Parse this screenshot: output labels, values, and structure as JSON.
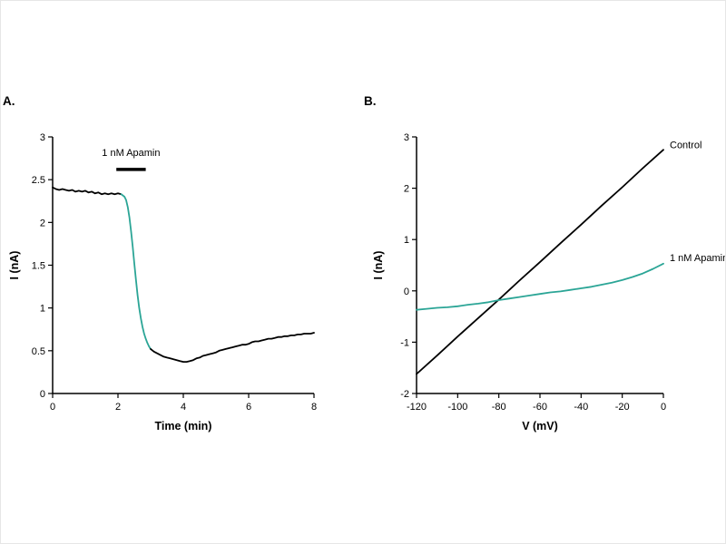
{
  "page": {
    "background": "#ffffff"
  },
  "panels": [
    {
      "label": "A."
    },
    {
      "label": "B."
    }
  ],
  "colors": {
    "trace_black": "#000000",
    "trace_teal": "#2ba596"
  },
  "chart_data": [
    {
      "type": "line",
      "title": "",
      "xlabel": "Time (min)",
      "ylabel": "I (nA)",
      "xlim": [
        0,
        8
      ],
      "ylim": [
        0,
        3
      ],
      "xticks": [
        0,
        2,
        4,
        6,
        8
      ],
      "yticks": [
        0,
        0.5,
        1,
        1.5,
        2,
        2.5,
        3
      ],
      "grid": false,
      "annotation": {
        "text": "1 nM Apamin",
        "bar_x": [
          1.95,
          2.85
        ],
        "bar_y": 2.62,
        "text_y": 2.78
      },
      "series": [
        {
          "name": "baseline-control",
          "color": "#000000",
          "x": [
            0,
            0.1,
            0.2,
            0.3,
            0.4,
            0.5,
            0.6,
            0.7,
            0.8,
            0.9,
            1.0,
            1.1,
            1.2,
            1.3,
            1.4,
            1.5,
            1.6,
            1.7,
            1.8,
            1.9,
            2.0,
            2.1
          ],
          "y": [
            2.41,
            2.39,
            2.38,
            2.39,
            2.38,
            2.37,
            2.38,
            2.36,
            2.37,
            2.36,
            2.37,
            2.35,
            2.36,
            2.34,
            2.35,
            2.33,
            2.34,
            2.33,
            2.34,
            2.33,
            2.34,
            2.33
          ]
        },
        {
          "name": "apamin-application",
          "color": "#2ba596",
          "x": [
            2.1,
            2.2,
            2.25,
            2.3,
            2.35,
            2.4,
            2.45,
            2.5,
            2.55,
            2.6,
            2.65,
            2.7,
            2.75,
            2.8,
            2.85,
            2.9,
            2.95,
            3.0
          ],
          "y": [
            2.33,
            2.3,
            2.26,
            2.18,
            2.06,
            1.9,
            1.72,
            1.52,
            1.33,
            1.15,
            1.0,
            0.88,
            0.78,
            0.7,
            0.64,
            0.59,
            0.55,
            0.52
          ]
        },
        {
          "name": "post-apamin",
          "color": "#000000",
          "x": [
            3.0,
            3.1,
            3.2,
            3.3,
            3.4,
            3.5,
            3.6,
            3.7,
            3.8,
            3.9,
            4.0,
            4.1,
            4.2,
            4.3,
            4.4,
            4.5,
            4.6,
            4.7,
            4.8,
            4.9,
            5.0,
            5.1,
            5.2,
            5.3,
            5.4,
            5.5,
            5.6,
            5.7,
            5.8,
            5.9,
            6.0,
            6.1,
            6.2,
            6.3,
            6.4,
            6.5,
            6.6,
            6.7,
            6.8,
            6.9,
            7.0,
            7.1,
            7.2,
            7.3,
            7.4,
            7.5,
            7.6,
            7.7,
            7.8,
            7.9,
            8.0
          ],
          "y": [
            0.52,
            0.49,
            0.47,
            0.45,
            0.43,
            0.42,
            0.41,
            0.4,
            0.39,
            0.38,
            0.37,
            0.37,
            0.38,
            0.39,
            0.41,
            0.42,
            0.44,
            0.45,
            0.46,
            0.47,
            0.48,
            0.5,
            0.51,
            0.52,
            0.53,
            0.54,
            0.55,
            0.56,
            0.57,
            0.57,
            0.58,
            0.6,
            0.61,
            0.61,
            0.62,
            0.63,
            0.64,
            0.64,
            0.65,
            0.66,
            0.66,
            0.67,
            0.67,
            0.68,
            0.68,
            0.69,
            0.69,
            0.7,
            0.7,
            0.7,
            0.71
          ]
        }
      ]
    },
    {
      "type": "line",
      "title": "",
      "xlabel": "V (mV)",
      "ylabel": "I (nA)",
      "xlim": [
        -120,
        0
      ],
      "ylim": [
        -2,
        3
      ],
      "xticks": [
        -120,
        -100,
        -80,
        -60,
        -40,
        -20,
        0
      ],
      "yticks": [
        -2,
        -1,
        0,
        1,
        2,
        3
      ],
      "grid": false,
      "right_labels": [
        {
          "text": "Control",
          "y": 2.85
        },
        {
          "text": "1 nM Apamin",
          "y": 0.65
        }
      ],
      "series": [
        {
          "name": "control-iv",
          "color": "#000000",
          "x": [
            -120,
            -110,
            -100,
            -90,
            -80,
            -70,
            -60,
            -50,
            -40,
            -30,
            -20,
            -10,
            0
          ],
          "y": [
            -1.62,
            -1.26,
            -0.89,
            -0.53,
            -0.17,
            0.2,
            0.56,
            0.93,
            1.29,
            1.66,
            2.02,
            2.39,
            2.75
          ]
        },
        {
          "name": "apamin-iv",
          "color": "#2ba596",
          "x": [
            -120,
            -115,
            -110,
            -105,
            -100,
            -95,
            -90,
            -85,
            -80,
            -75,
            -70,
            -65,
            -60,
            -55,
            -50,
            -45,
            -40,
            -35,
            -30,
            -25,
            -20,
            -15,
            -10,
            -5,
            0
          ],
          "y": [
            -0.37,
            -0.35,
            -0.33,
            -0.32,
            -0.3,
            -0.27,
            -0.25,
            -0.22,
            -0.18,
            -0.15,
            -0.12,
            -0.09,
            -0.06,
            -0.03,
            -0.01,
            0.02,
            0.05,
            0.08,
            0.12,
            0.16,
            0.21,
            0.27,
            0.34,
            0.43,
            0.53
          ]
        }
      ]
    }
  ]
}
